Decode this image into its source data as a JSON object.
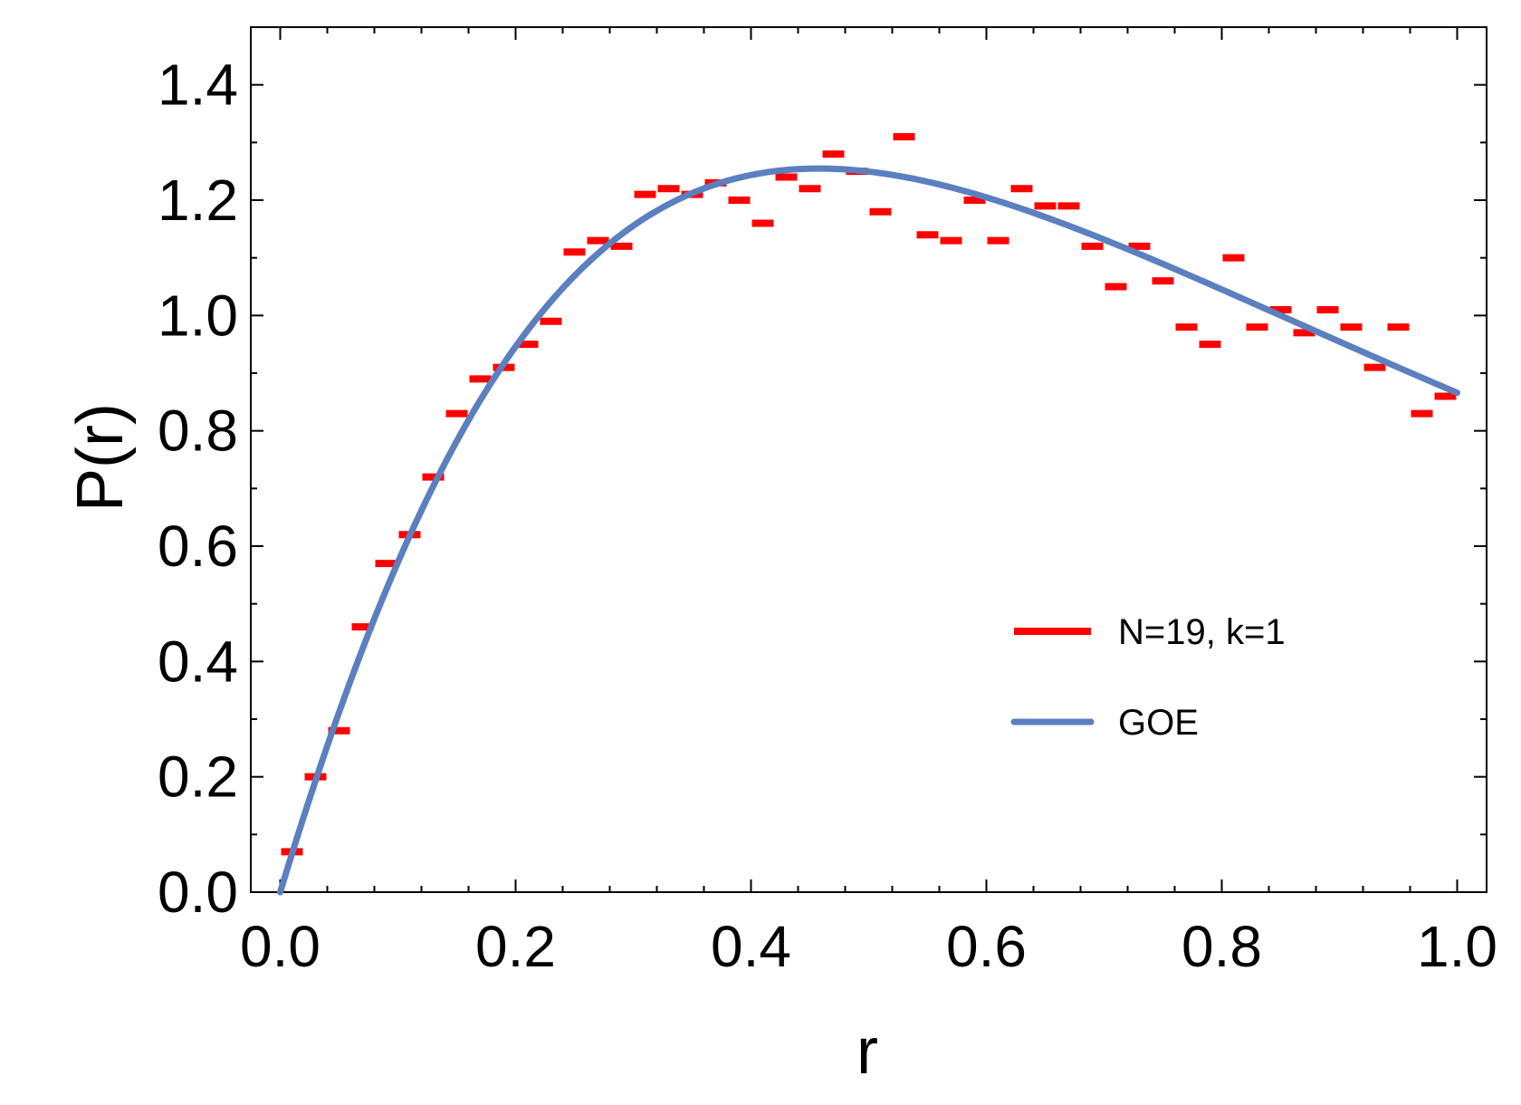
{
  "chart_data": {
    "type": "line",
    "title": "",
    "xlabel": "r",
    "ylabel": "P(r)",
    "xlim": [
      -0.025,
      1.025
    ],
    "ylim": [
      0.0,
      1.5
    ],
    "xticks": [
      0.0,
      0.2,
      0.4,
      0.6,
      0.8,
      1.0
    ],
    "xtick_labels": [
      "0.0",
      "0.2",
      "0.4",
      "0.6",
      "0.8",
      "1.0"
    ],
    "yticks": [
      0.0,
      0.2,
      0.4,
      0.6,
      0.8,
      1.0,
      1.2,
      1.4
    ],
    "ytick_labels": [
      "0.0",
      "0.2",
      "0.4",
      "0.6",
      "0.8",
      "1.0",
      "1.2",
      "1.4"
    ],
    "grid": false,
    "legend_position": "center-right",
    "series": [
      {
        "name": "N=19, k=1",
        "style": "step-bars",
        "color": "#ff0000",
        "bin_width": 0.02,
        "x": [
          0.01,
          0.03,
          0.05,
          0.07,
          0.09,
          0.11,
          0.13,
          0.15,
          0.17,
          0.19,
          0.21,
          0.23,
          0.25,
          0.27,
          0.29,
          0.31,
          0.33,
          0.35,
          0.37,
          0.39,
          0.41,
          0.43,
          0.45,
          0.47,
          0.49,
          0.51,
          0.53,
          0.55,
          0.57,
          0.59,
          0.61,
          0.63,
          0.65,
          0.67,
          0.69,
          0.71,
          0.73,
          0.75,
          0.77,
          0.79,
          0.81,
          0.83,
          0.85,
          0.87,
          0.89,
          0.91,
          0.93,
          0.95,
          0.97,
          0.99
        ],
        "values": [
          0.07,
          0.2,
          0.28,
          0.46,
          0.57,
          0.62,
          0.72,
          0.83,
          0.89,
          0.91,
          0.95,
          0.99,
          1.11,
          1.13,
          1.12,
          1.21,
          1.22,
          1.21,
          1.23,
          1.2,
          1.16,
          1.24,
          1.22,
          1.28,
          1.25,
          1.18,
          1.31,
          1.14,
          1.13,
          1.2,
          1.13,
          1.22,
          1.19,
          1.19,
          1.12,
          1.05,
          1.12,
          1.06,
          0.98,
          0.95,
          1.1,
          0.98,
          1.01,
          0.97,
          1.01,
          0.98,
          0.91,
          0.98,
          0.83,
          0.86
        ]
      },
      {
        "name": "GOE",
        "style": "line",
        "color": "#5b7fbf",
        "formula": "P(r) = (27/4) * (r + r^2) / (1 + r + r^2)^(5/2)",
        "x_range": [
          0.0,
          1.0
        ]
      }
    ]
  }
}
